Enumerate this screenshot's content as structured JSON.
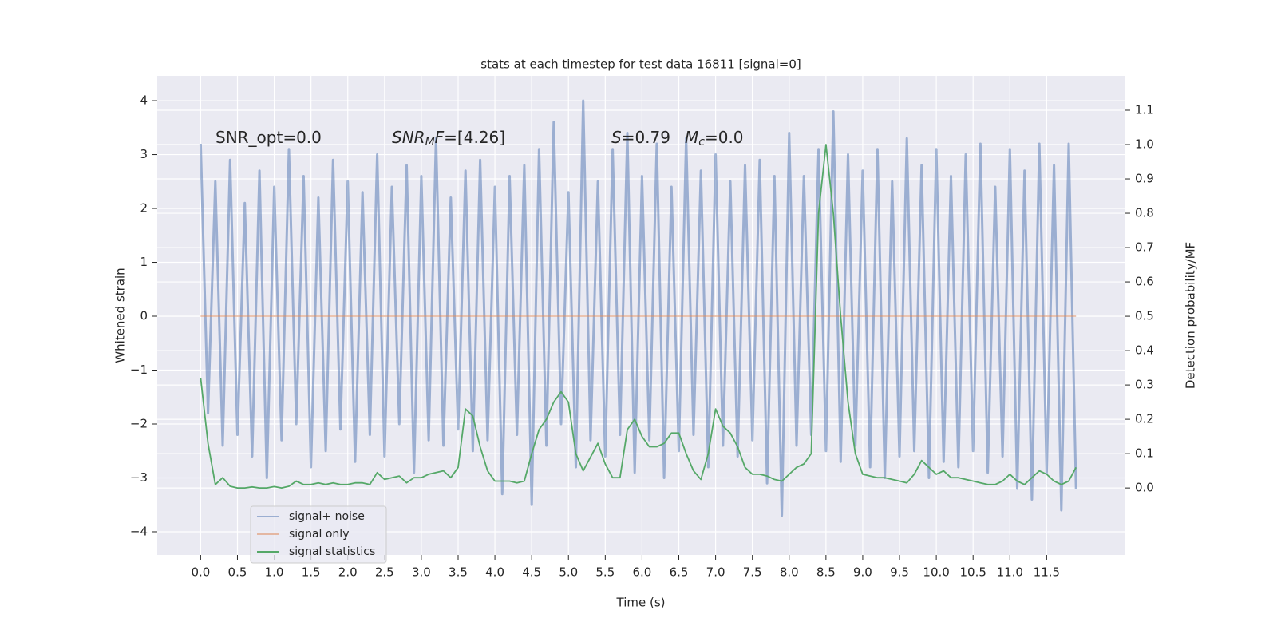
{
  "chart_data": {
    "type": "line",
    "title": "stats at each timestep for test data 16811 [signal=0]",
    "xlabel": "Time (s)",
    "ylabel": "Whitened strain",
    "y2label": "Detection probability/MF",
    "xlim": [
      -0.59,
      12.57
    ],
    "ylim": [
      -4.43,
      4.46
    ],
    "y2lim": [
      -0.195,
      1.2
    ],
    "xticks": [
      {
        "value": 0,
        "label": "0.0"
      },
      0.5,
      {
        "value": 1,
        "label": "1.0"
      },
      1.5,
      {
        "value": 2,
        "label": "2.0"
      },
      2.5,
      {
        "value": 3,
        "label": "3.0"
      },
      3.5,
      {
        "value": 4,
        "label": "4.0"
      },
      4.5,
      {
        "value": 5,
        "label": "5.0"
      },
      5.5,
      {
        "value": 6,
        "label": "6.0"
      },
      6.5,
      {
        "value": 7,
        "label": "7.0"
      },
      7.5,
      {
        "value": 8,
        "label": "8.0"
      },
      8.5,
      {
        "value": 9,
        "label": "9.0"
      },
      9.5,
      {
        "value": 10,
        "label": "10.0"
      },
      10.5,
      {
        "value": 11,
        "label": "11.0"
      },
      11.5
    ],
    "yticks": [
      {
        "value": -4,
        "label": "−4"
      },
      {
        "value": -3,
        "label": "−3"
      },
      {
        "value": -2,
        "label": "−2"
      },
      {
        "value": -1,
        "label": "−1"
      },
      0,
      1,
      2,
      3,
      4
    ],
    "y2ticks": [
      {
        "value": 0,
        "label": "0.0"
      },
      0.1,
      0.2,
      0.3,
      0.4,
      0.5,
      0.6,
      0.7,
      0.8,
      0.9,
      {
        "value": 1,
        "label": "1.0"
      },
      1.1
    ],
    "grid": true,
    "legend": "lower left",
    "annotations": [
      [
        {
          "text": "SNR_opt=0.0"
        }
      ],
      [
        {
          "text": "SNR",
          "italic": true
        },
        {
          "text": "M",
          "italic": true,
          "sub": true
        },
        {
          "text": "F",
          "italic": true
        },
        {
          "text": "=[4.26]"
        }
      ],
      [
        {
          "text": "S",
          "italic": true
        },
        {
          "text": "=0.79"
        }
      ],
      [
        {
          "text": "M",
          "italic": true
        },
        {
          "text": "c",
          "italic": true,
          "sub": true
        },
        {
          "text": "=0.0"
        }
      ]
    ],
    "x": [
      0,
      0.1,
      0.2,
      0.3,
      0.4,
      0.5,
      0.6,
      0.7,
      0.8,
      0.9,
      1,
      1.1,
      1.2,
      1.3,
      1.4,
      1.5,
      1.6,
      1.7,
      1.8,
      1.9,
      2,
      2.1,
      2.2,
      2.3,
      2.4,
      2.5,
      2.6,
      2.7,
      2.8,
      2.9,
      3,
      3.1,
      3.2,
      3.3,
      3.4,
      3.5,
      3.6,
      3.7,
      3.8,
      3.9,
      4,
      4.1,
      4.2,
      4.3,
      4.4,
      4.5,
      4.6,
      4.7,
      4.8,
      4.9,
      5,
      5.1,
      5.2,
      5.3,
      5.4,
      5.5,
      5.6,
      5.7,
      5.8,
      5.9,
      6,
      6.1,
      6.2,
      6.3,
      6.4,
      6.5,
      6.6,
      6.7,
      6.8,
      6.9,
      7,
      7.1,
      7.2,
      7.3,
      7.4,
      7.5,
      7.6,
      7.7,
      7.8,
      7.9,
      8,
      8.1,
      8.2,
      8.3,
      8.4,
      8.5,
      8.6,
      8.7,
      8.8,
      8.9,
      9,
      9.1,
      9.2,
      9.3,
      9.4,
      9.5,
      9.6,
      9.7,
      9.8,
      9.9,
      10,
      10.1,
      10.2,
      10.3,
      10.4,
      10.5,
      10.6,
      10.7,
      10.8,
      10.9,
      11,
      11.1,
      11.2,
      11.3,
      11.4,
      11.5,
      11.6,
      11.7,
      11.8,
      11.9
    ],
    "series": [
      {
        "name": "signal+ noise",
        "color": "#4c72b0",
        "opacity": 0.5,
        "values": [
          3.2,
          -1.8,
          2.5,
          -2.4,
          2.9,
          -2.2,
          2.1,
          -2.6,
          2.7,
          -3.0,
          2.4,
          -2.3,
          3.1,
          -2.0,
          2.6,
          -2.8,
          2.2,
          -2.5,
          2.9,
          -2.1,
          2.5,
          -2.7,
          2.3,
          -2.2,
          3.0,
          -2.6,
          2.4,
          -2.0,
          2.8,
          -2.9,
          2.6,
          -2.3,
          3.3,
          -2.4,
          2.2,
          -2.1,
          2.7,
          -2.5,
          2.9,
          -2.3,
          2.4,
          -3.3,
          2.6,
          -2.2,
          2.8,
          -3.5,
          3.1,
          -2.4,
          3.6,
          -2.0,
          2.3,
          -2.8,
          4.0,
          -2.3,
          2.5,
          -2.6,
          3.1,
          -2.2,
          3.4,
          -2.9,
          2.6,
          -2.3,
          3.2,
          -3.0,
          2.4,
          -2.5,
          3.3,
          -2.2,
          2.7,
          -2.8,
          3.0,
          -2.4,
          2.5,
          -2.6,
          2.8,
          -2.3,
          2.9,
          -3.1,
          2.6,
          -3.7,
          3.4,
          -2.4,
          2.6,
          -2.2,
          3.1,
          -2.5,
          3.8,
          -2.7,
          3.0,
          -2.4,
          2.7,
          -2.8,
          3.1,
          -3.0,
          2.5,
          -2.6,
          3.3,
          -2.5,
          2.8,
          -3.0,
          3.1,
          -2.7,
          2.6,
          -2.8,
          3.0,
          -2.5,
          3.2,
          -2.9,
          2.4,
          -2.6,
          3.1,
          -3.2,
          2.7,
          -3.4,
          3.2,
          -2.9,
          2.8,
          -3.6,
          3.2,
          -3.2
        ]
      },
      {
        "name": "signal only",
        "color": "#dd8452",
        "opacity": 0.5,
        "values": [
          0,
          0,
          0,
          0,
          0,
          0,
          0,
          0,
          0,
          0,
          0,
          0,
          0,
          0,
          0,
          0,
          0,
          0,
          0,
          0,
          0,
          0,
          0,
          0,
          0,
          0,
          0,
          0,
          0,
          0,
          0,
          0,
          0,
          0,
          0,
          0,
          0,
          0,
          0,
          0,
          0,
          0,
          0,
          0,
          0,
          0,
          0,
          0,
          0,
          0,
          0,
          0,
          0,
          0,
          0,
          0,
          0,
          0,
          0,
          0,
          0,
          0,
          0,
          0,
          0,
          0,
          0,
          0,
          0,
          0,
          0,
          0,
          0,
          0,
          0,
          0,
          0,
          0,
          0,
          0,
          0,
          0,
          0,
          0,
          0,
          0,
          0,
          0,
          0,
          0,
          0,
          0,
          0,
          0,
          0,
          0,
          0,
          0,
          0,
          0,
          0,
          0,
          0,
          0,
          0,
          0,
          0,
          0,
          0,
          0,
          0,
          0,
          0,
          0,
          0,
          0,
          0,
          0,
          0,
          0
        ]
      },
      {
        "name": "signal statistics",
        "color": "#55a868",
        "opacity": 1,
        "axis": "y2",
        "values": [
          0.32,
          0.13,
          0.01,
          0.03,
          0.005,
          0,
          0,
          0.003,
          0,
          0,
          0.004,
          0,
          0.005,
          0.02,
          0.01,
          0.01,
          0.015,
          0.01,
          0.015,
          0.01,
          0.01,
          0.015,
          0.015,
          0.01,
          0.045,
          0.025,
          0.03,
          0.035,
          0.015,
          0.03,
          0.03,
          0.04,
          0.045,
          0.05,
          0.03,
          0.06,
          0.23,
          0.21,
          0.12,
          0.05,
          0.02,
          0.02,
          0.02,
          0.015,
          0.02,
          0.1,
          0.17,
          0.2,
          0.25,
          0.28,
          0.25,
          0.1,
          0.05,
          0.09,
          0.13,
          0.07,
          0.03,
          0.03,
          0.17,
          0.2,
          0.15,
          0.12,
          0.12,
          0.13,
          0.16,
          0.16,
          0.1,
          0.05,
          0.025,
          0.1,
          0.23,
          0.18,
          0.16,
          0.12,
          0.06,
          0.04,
          0.04,
          0.035,
          0.025,
          0.02,
          0.04,
          0.06,
          0.07,
          0.1,
          0.8,
          1.0,
          0.8,
          0.5,
          0.25,
          0.1,
          0.04,
          0.035,
          0.03,
          0.03,
          0.025,
          0.02,
          0.015,
          0.04,
          0.08,
          0.06,
          0.04,
          0.05,
          0.03,
          0.03,
          0.025,
          0.02,
          0.015,
          0.01,
          0.01,
          0.02,
          0.04,
          0.02,
          0.01,
          0.03,
          0.05,
          0.04,
          0.02,
          0.01,
          0.02,
          0.06
        ]
      }
    ]
  }
}
